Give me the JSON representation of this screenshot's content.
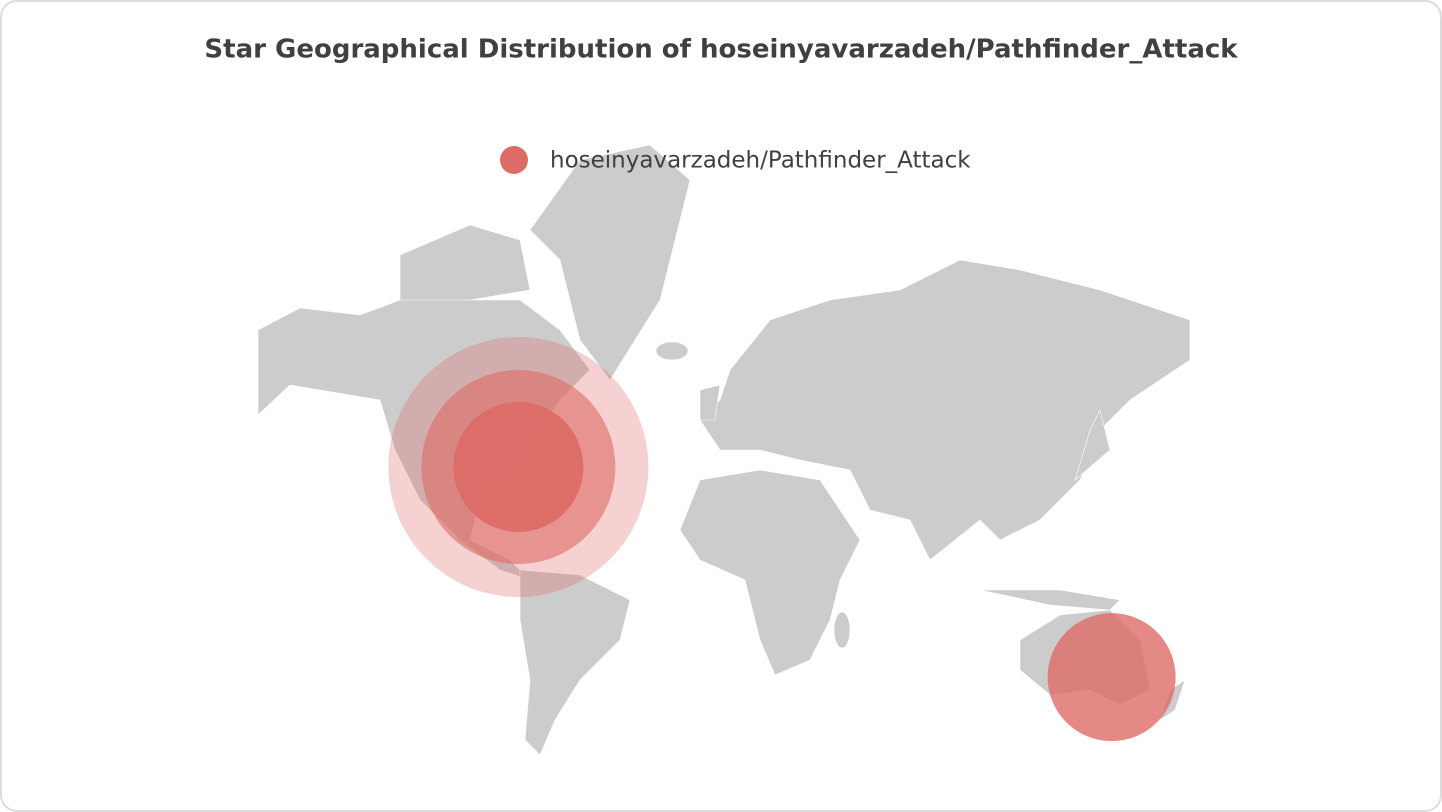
{
  "chart_data": {
    "type": "scatter",
    "projection": "mercator",
    "title": "Star Geographical Distribution of hoseinyavarzadeh/Pathfinder_Attack",
    "series": [
      {
        "name": "hoseinyavarzadeh/Pathfinder_Attack",
        "color": "#dd6b66",
        "x": [
          -77,
          149
        ],
        "values": [
          38.9,
          -35.3
        ],
        "ripple": [
          true,
          false
        ]
      }
    ]
  }
}
